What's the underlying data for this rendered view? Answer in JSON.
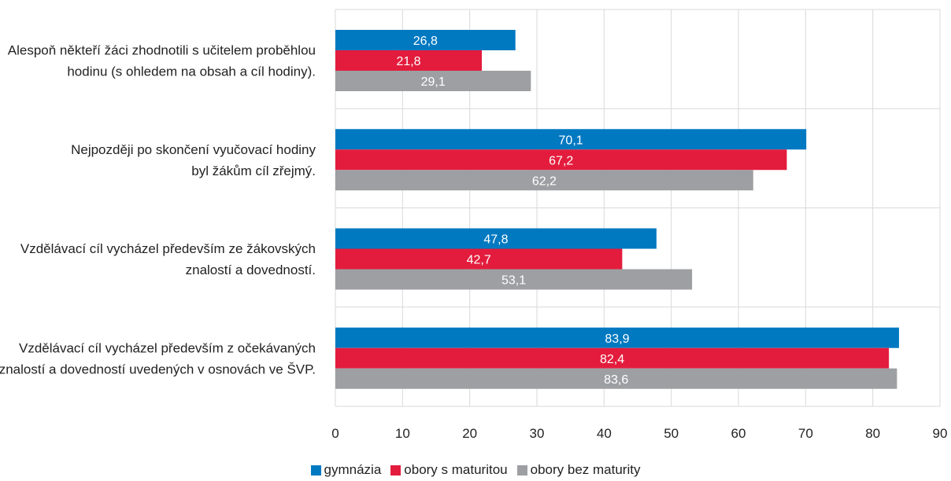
{
  "colors": {
    "gymnazia": "#0079c1",
    "maturita": "#e31c3d",
    "bez_maturity": "#9d9fa2",
    "grid": "#d9d9d9"
  },
  "chart_data": {
    "type": "bar",
    "orientation": "horizontal",
    "categories": [
      "Alespoň někteří žáci zhodnotili s učitelem proběhlou hodinu (s ohledem na obsah a cíl hodiny).",
      "Nejpozději po skončení vyučovací hodiny byl žákům cíl zřejmý.",
      "Vzdělávací cíl vycházel především ze žákovských znalostí a dovedností.",
      "Vzdělávací cíl vycházel především z očekávaných znalostí a dovedností uvedených v osnovách ve ŠVP."
    ],
    "category_lines": [
      [
        "Alespoň někteří žáci zhodnotili s učitelem proběhlou",
        "hodinu (s ohledem na obsah a cíl hodiny)."
      ],
      [
        "Nejpozději po skončení vyučovací hodiny",
        "byl žákům cíl zřejmý."
      ],
      [
        "Vzdělávací cíl vycházel především ze žákovských",
        "znalostí a dovedností."
      ],
      [
        "Vzdělávací cíl vycházel především z očekávaných",
        "znalostí a dovedností uvedených v osnovách ve ŠVP."
      ]
    ],
    "series": [
      {
        "name": "gymnázia",
        "values": [
          26.8,
          70.1,
          47.8,
          83.9
        ],
        "labels": [
          "26,8",
          "70,1",
          "47,8",
          "83,9"
        ]
      },
      {
        "name": "obory s maturitou",
        "values": [
          21.8,
          67.2,
          42.7,
          82.4
        ],
        "labels": [
          "21,8",
          "67,2",
          "42,7",
          "82,4"
        ]
      },
      {
        "name": "obory bez maturity",
        "values": [
          29.1,
          62.2,
          53.1,
          83.6
        ],
        "labels": [
          "29,1",
          "62,2",
          "53,1",
          "83,6"
        ]
      }
    ],
    "xlim": [
      0,
      90
    ],
    "xticks": [
      "0",
      "10",
      "20",
      "30",
      "40",
      "50",
      "60",
      "70",
      "80",
      "90"
    ],
    "grid": true,
    "legend_position": "bottom"
  }
}
